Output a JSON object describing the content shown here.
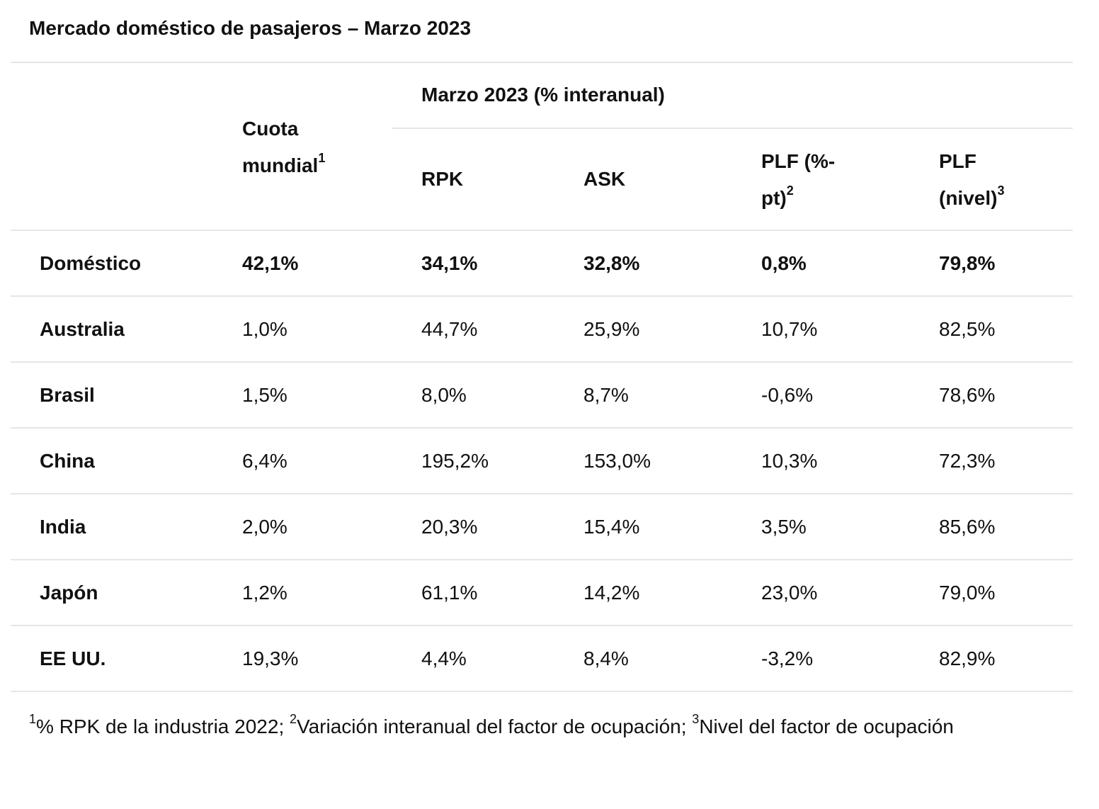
{
  "title": "Mercado doméstico de pasajeros – Marzo 2023",
  "header": {
    "cuota_line1": "Cuota",
    "cuota_line2": "mundial",
    "cuota_sup": "1",
    "group_label": "Marzo 2023 (% interanual)",
    "rpk": "RPK",
    "ask": "ASK",
    "plf_pt_line1": "PLF (%-",
    "plf_pt_line2": "pt)",
    "plf_pt_sup": "2",
    "plf_level_line1": "PLF",
    "plf_level_line2": "(nivel)",
    "plf_level_sup": "3"
  },
  "rows": [
    {
      "market": "Doméstico",
      "share": "42,1%",
      "rpk": "34,1%",
      "ask": "32,8%",
      "plf_pt": "0,8%",
      "plf_level": "79,8%"
    },
    {
      "market": "Australia",
      "share": "1,0%",
      "rpk": "44,7%",
      "ask": "25,9%",
      "plf_pt": "10,7%",
      "plf_level": "82,5%"
    },
    {
      "market": "Brasil",
      "share": "1,5%",
      "rpk": "8,0%",
      "ask": "8,7%",
      "plf_pt": "-0,6%",
      "plf_level": "78,6%"
    },
    {
      "market": "China",
      "share": "6,4%",
      "rpk": "195,2%",
      "ask": "153,0%",
      "plf_pt": "10,3%",
      "plf_level": "72,3%"
    },
    {
      "market": "India",
      "share": "2,0%",
      "rpk": "20,3%",
      "ask": "15,4%",
      "plf_pt": "3,5%",
      "plf_level": "85,6%"
    },
    {
      "market": "Japón",
      "share": "1,2%",
      "rpk": "61,1%",
      "ask": "14,2%",
      "plf_pt": "23,0%",
      "plf_level": "79,0%"
    },
    {
      "market": "EE UU.",
      "share": "19,3%",
      "rpk": "4,4%",
      "ask": "8,4%",
      "plf_pt": "-3,2%",
      "plf_level": "82,9%"
    }
  ],
  "footnote": {
    "sup1": "1",
    "text1": "% RPK de la industria 2022; ",
    "sup2": "2",
    "text2": "Variación interanual del factor de ocupación; ",
    "sup3": "3",
    "text3": "Nivel del factor de ocupación"
  }
}
